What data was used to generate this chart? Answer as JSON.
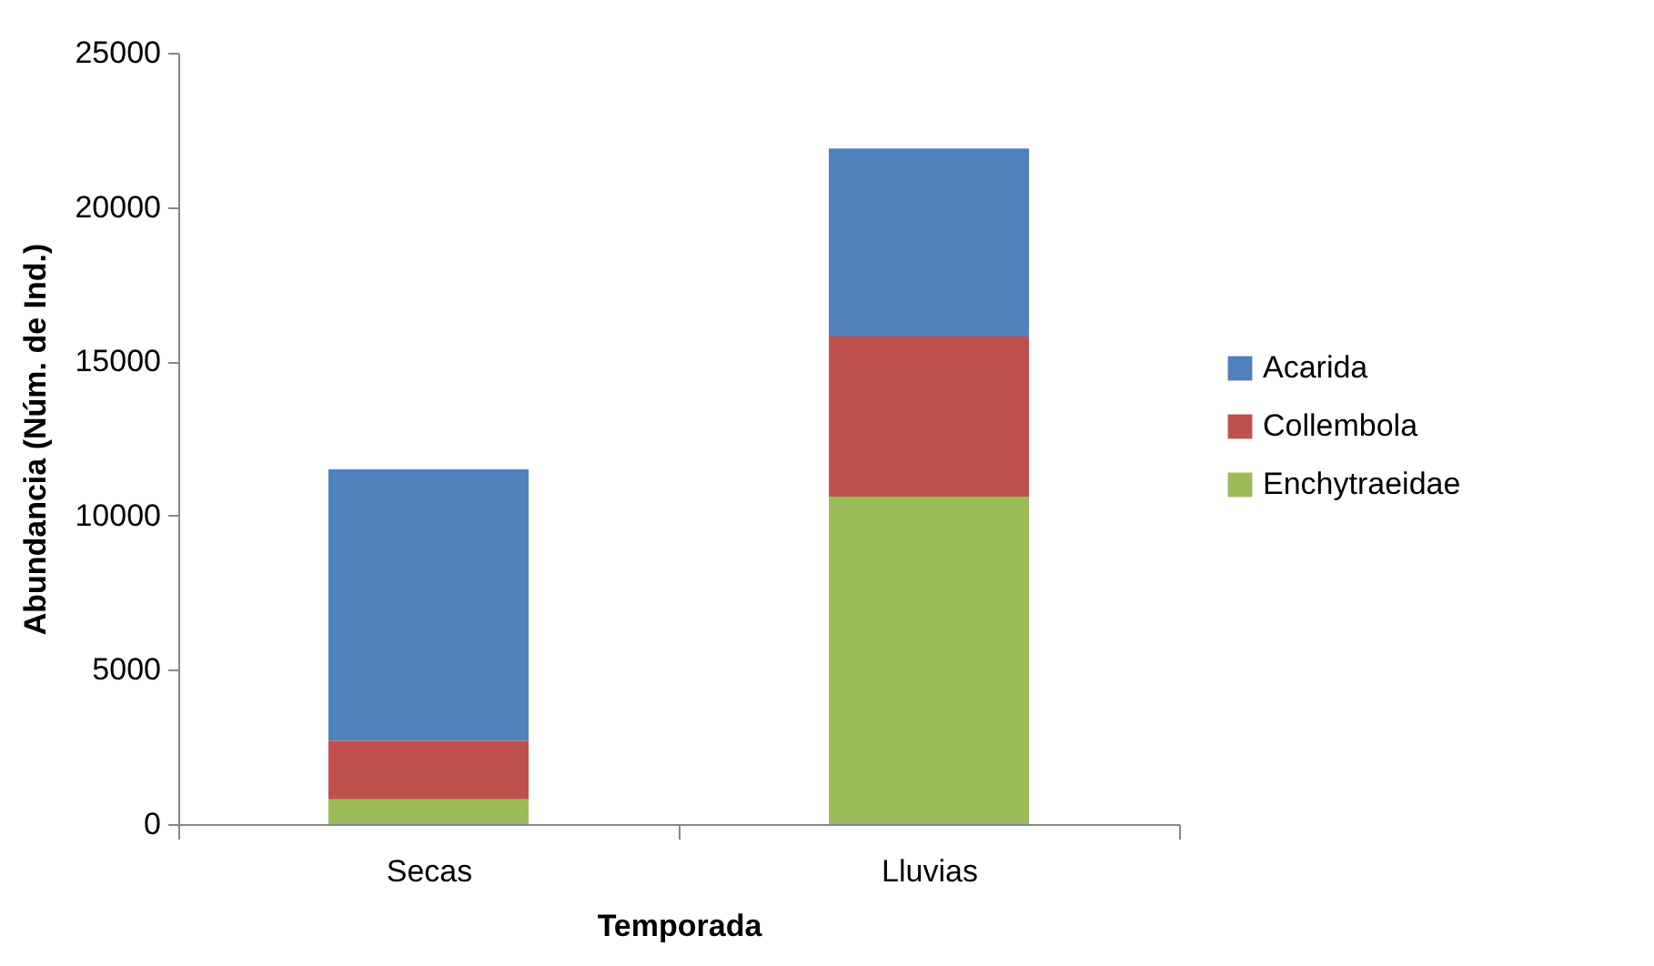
{
  "chart_data": {
    "type": "bar",
    "stacked": true,
    "xlabel": "Temporada",
    "ylabel": "Abundancia (Núm. de Ind.)",
    "categories": [
      "Secas",
      "Lluvias"
    ],
    "series": [
      {
        "name": "Enchytraeidae",
        "color": "#9bbb59",
        "values": [
          800,
          10600
        ]
      },
      {
        "name": "Collembola",
        "color": "#c0504d",
        "values": [
          1900,
          5200
        ]
      },
      {
        "name": "Acarida",
        "color": "#4f81bd",
        "values": [
          8800,
          6100
        ]
      }
    ],
    "ylim": [
      0,
      25000
    ],
    "yticks": [
      0,
      5000,
      10000,
      15000,
      20000,
      25000
    ],
    "grid": false,
    "legend": "right"
  }
}
